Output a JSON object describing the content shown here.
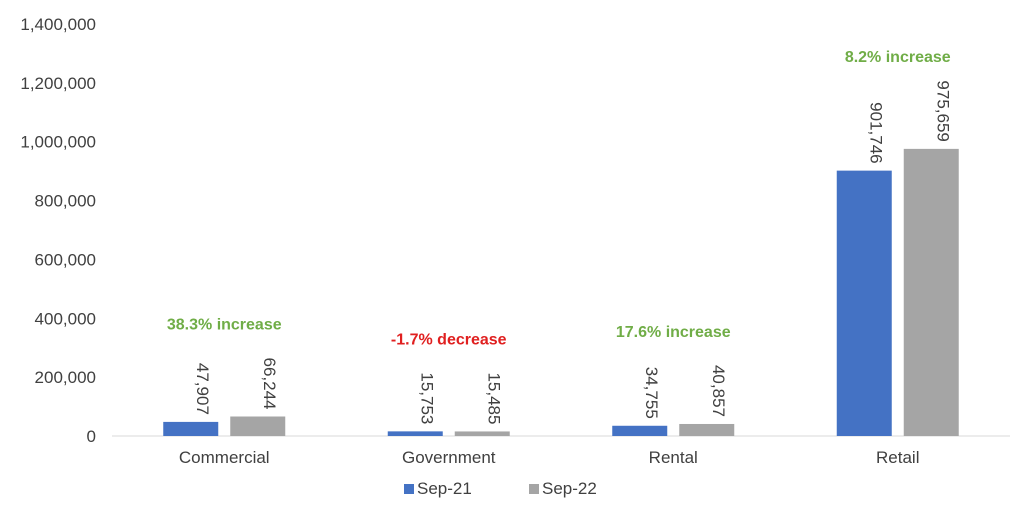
{
  "chart_data": {
    "type": "bar",
    "categories": [
      "Commercial",
      "Government",
      "Rental",
      "Retail"
    ],
    "series": [
      {
        "name": "Sep-21",
        "values": [
          47907,
          15753,
          34755,
          901746
        ],
        "labels": [
          "47,907",
          "15,753",
          "34,755",
          "901,746"
        ]
      },
      {
        "name": "Sep-22",
        "values": [
          66244,
          15485,
          40857,
          975659
        ],
        "labels": [
          "66,244",
          "15,485",
          "40,857",
          "975,659"
        ]
      }
    ],
    "annotations": [
      "38.3% increase",
      "-1.7% decrease",
      "17.6% increase",
      "8.2% increase"
    ],
    "annotation_colors": [
      "#70ad47",
      "#e02020",
      "#70ad47",
      "#70ad47"
    ],
    "y_ticks": [
      "0",
      "200,000",
      "400,000",
      "600,000",
      "800,000",
      "1,000,000",
      "1,200,000",
      "1,400,000"
    ],
    "ylim": [
      0,
      1400000
    ],
    "legend_position": "bottom",
    "grid": false,
    "colors": {
      "Sep-21": "#4472c4",
      "Sep-22": "#a5a5a5"
    },
    "title": "",
    "xlabel": "",
    "ylabel": ""
  }
}
